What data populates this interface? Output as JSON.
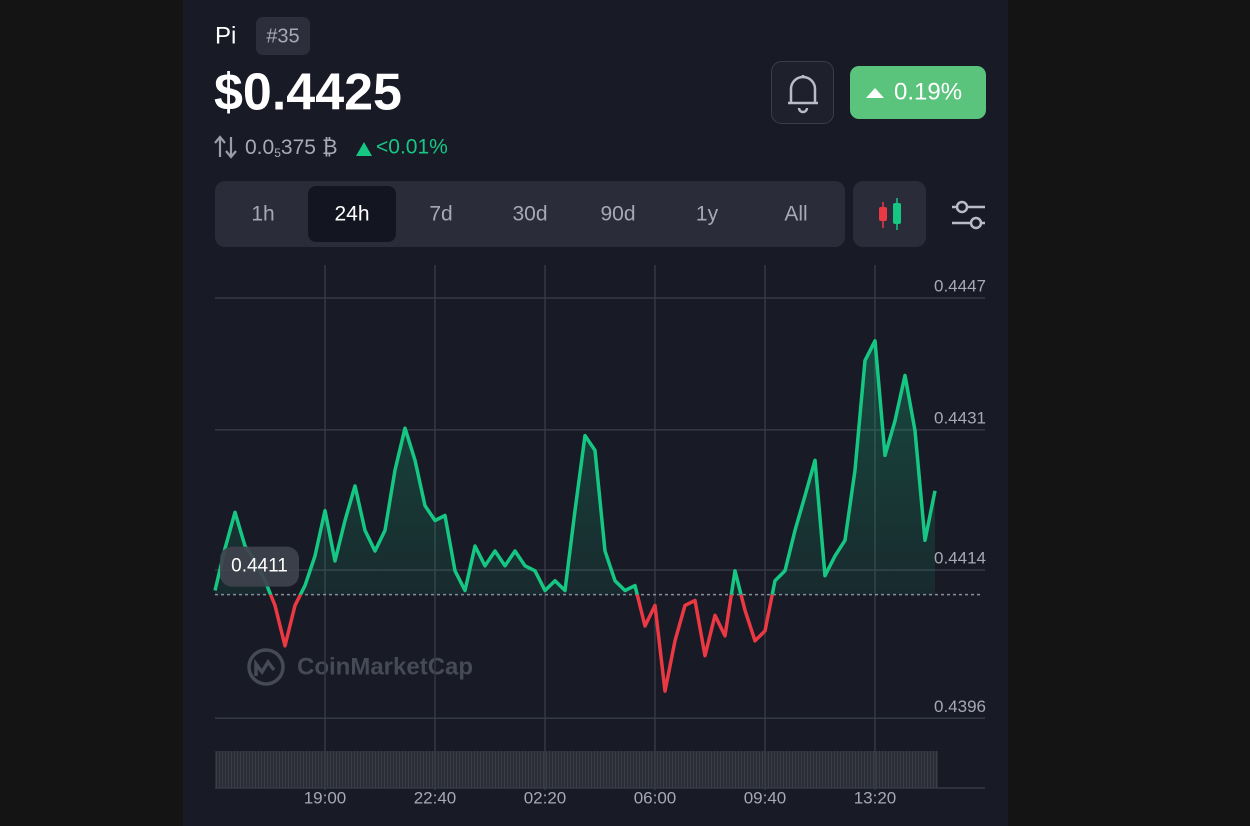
{
  "header": {
    "name": "Pi",
    "rank": "#35",
    "price": "$0.4425",
    "change_24h": "0.19%",
    "btc_price": {
      "prefix": "0.0",
      "subscript": "5",
      "digits": "375",
      "unit": "₿"
    },
    "btc_change": "<0.01%"
  },
  "timeframes": [
    "1h",
    "24h",
    "7d",
    "30d",
    "90d",
    "1y",
    "All"
  ],
  "active_timeframe": "24h",
  "chart_data": {
    "type": "line",
    "watermark": "CoinMarketCap",
    "categories": [
      null,
      null,
      null,
      null,
      null,
      null,
      null,
      null,
      null,
      null,
      null,
      "19:00",
      null,
      null,
      null,
      null,
      null,
      null,
      null,
      null,
      null,
      null,
      "22:40",
      null,
      null,
      null,
      null,
      null,
      null,
      null,
      null,
      null,
      null,
      "02:20",
      null,
      null,
      null,
      null,
      null,
      null,
      null,
      null,
      null,
      null,
      "06:00",
      null,
      null,
      null,
      null,
      null,
      null,
      null,
      null,
      null,
      null,
      "09:40",
      null,
      null,
      null,
      null,
      null,
      null,
      null,
      null,
      null,
      null,
      "13:20",
      null,
      null,
      null,
      null,
      null,
      null
    ],
    "series": [
      {
        "color": "#16c784",
        "color_below": "#ea3943",
        "values": [
          0.44115,
          0.44166,
          0.4421,
          0.44169,
          0.44151,
          0.44127,
          0.44097,
          0.44048,
          0.44097,
          0.44121,
          0.44157,
          0.44212,
          0.44151,
          0.442,
          0.44242,
          0.44188,
          0.44163,
          0.44188,
          0.44261,
          0.44312,
          0.44273,
          0.44218,
          0.442,
          0.44206,
          0.44139,
          0.44115,
          0.44169,
          0.44145,
          0.44163,
          0.44145,
          0.44163,
          0.44145,
          0.44139,
          0.44115,
          0.44127,
          0.44115,
          0.44212,
          0.44303,
          0.44285,
          0.44163,
          0.44127,
          0.44115,
          0.44121,
          0.44072,
          0.44097,
          0.43993,
          0.44054,
          0.44097,
          0.44103,
          0.44036,
          0.44085,
          0.4406,
          0.44139,
          0.44091,
          0.44054,
          0.44066,
          0.44127,
          0.44139,
          0.44188,
          0.4423,
          0.44273,
          0.44133,
          0.44157,
          0.44176,
          0.44261,
          0.44394,
          0.44418,
          0.44279,
          0.44321,
          0.44376,
          0.44309,
          0.44176,
          0.44236
        ]
      }
    ],
    "baseline": 0.4411,
    "ylim": [
      0.43873,
      0.4451
    ],
    "yticks": [
      0.4447,
      0.4431,
      0.4414,
      0.4396
    ],
    "grid": true
  }
}
